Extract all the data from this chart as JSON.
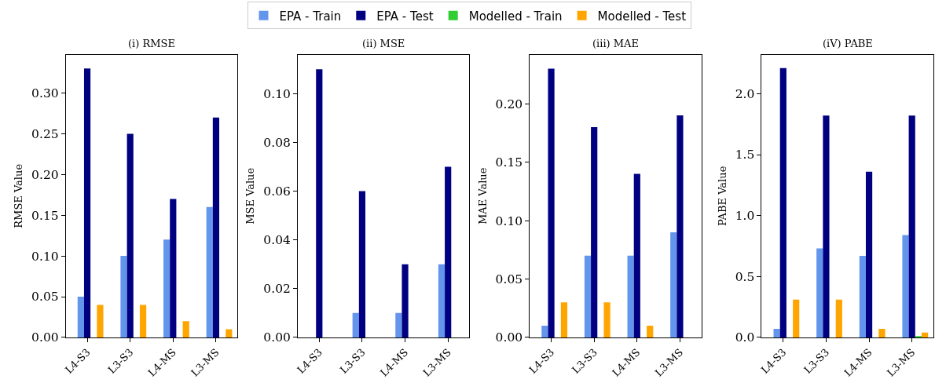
{
  "chart_data": [
    {
      "type": "bar",
      "title": "(i) RMSE",
      "ylabel": "RMSE Value",
      "categories": [
        "L4-S3",
        "L3-S3",
        "L4-MS",
        "L3-MS"
      ],
      "legend": "top",
      "series": [
        {
          "name": "EPA - Train",
          "color": "#6495ed",
          "values": [
            0.05,
            0.1,
            0.12,
            0.16
          ]
        },
        {
          "name": "EPA - Test",
          "color": "#000080",
          "values": [
            0.33,
            0.25,
            0.17,
            0.27
          ]
        },
        {
          "name": "Modelled - Train",
          "color": "#32cd32",
          "values": [
            0,
            0,
            0,
            0
          ]
        },
        {
          "name": "Modelled - Test",
          "color": "#ffa500",
          "values": [
            0.04,
            0.04,
            0.02,
            0.01
          ]
        }
      ],
      "ylim": [
        0,
        0.347
      ],
      "yticks": [
        {
          "value": 0,
          "label": "0.00"
        },
        0.05,
        {
          "value": 0.1,
          "label": "0.10"
        },
        0.15,
        {
          "value": 0.2,
          "label": "0.20"
        },
        0.25,
        {
          "value": 0.3,
          "label": "0.30"
        }
      ]
    },
    {
      "type": "bar",
      "title": "(ii) MSE",
      "ylabel": "MSE Value",
      "categories": [
        "L4-S3",
        "L3-S3",
        "L4-MS",
        "L3-MS"
      ],
      "series": [
        {
          "color": "#6495ed",
          "values": [
            0,
            0.01,
            0.01,
            0.03
          ]
        },
        {
          "color": "#000080",
          "values": [
            0.11,
            0.06,
            0.03,
            0.07
          ]
        },
        {
          "color": "#32cd32",
          "values": [
            0,
            0,
            0,
            0
          ]
        },
        {
          "color": "#ffa500",
          "values": [
            0,
            0,
            0,
            0
          ]
        }
      ],
      "ylim": [
        0,
        0.116
      ],
      "yticks": [
        {
          "value": 0,
          "label": "0.00"
        },
        0.02,
        0.04,
        0.06,
        0.08,
        {
          "value": 0.1,
          "label": "0.10"
        }
      ]
    },
    {
      "type": "bar",
      "title": "(iii) MAE",
      "ylabel": "MAE Value",
      "categories": [
        "L4-S3",
        "L3-S3",
        "L4-MS",
        "L3-MS"
      ],
      "series": [
        {
          "color": "#6495ed",
          "values": [
            0.01,
            0.07,
            0.07,
            0.09
          ]
        },
        {
          "color": "#000080",
          "values": [
            0.23,
            0.18,
            0.14,
            0.19
          ]
        },
        {
          "color": "#32cd32",
          "values": [
            0,
            0,
            0,
            0
          ]
        },
        {
          "color": "#ffa500",
          "values": [
            0.03,
            0.03,
            0.01,
            0
          ]
        }
      ],
      "ylim": [
        0,
        0.242
      ],
      "yticks": [
        {
          "value": 0,
          "label": "0.00"
        },
        0.05,
        {
          "value": 0.1,
          "label": "0.10"
        },
        0.15,
        {
          "value": 0.2,
          "label": "0.20"
        }
      ]
    },
    {
      "type": "bar",
      "title": "(iV) PABE",
      "ylabel": "PABE Value",
      "categories": [
        "L4-S3",
        "L3-S3",
        "L4-MS",
        "L3-MS"
      ],
      "series": [
        {
          "color": "#6495ed",
          "values": [
            0.07,
            0.73,
            0.67,
            0.84
          ]
        },
        {
          "color": "#000080",
          "values": [
            2.21,
            1.82,
            1.36,
            1.82
          ]
        },
        {
          "color": "#32cd32",
          "values": [
            0,
            0,
            0,
            0.01
          ]
        },
        {
          "color": "#ffa500",
          "values": [
            0.31,
            0.31,
            0.07,
            0.04
          ]
        }
      ],
      "ylim": [
        0,
        2.32
      ],
      "yticks": [
        {
          "value": 0,
          "label": "0.0"
        },
        0.5,
        {
          "value": 1,
          "label": "1.0"
        },
        1.5,
        {
          "value": 2,
          "label": "2.0"
        }
      ]
    }
  ]
}
